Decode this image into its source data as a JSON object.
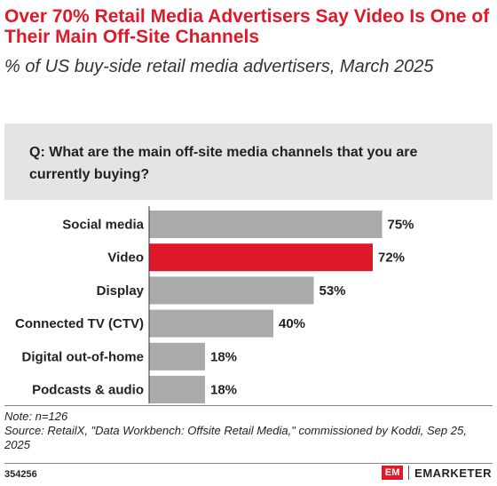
{
  "header": {
    "title": "Over 70% Retail Media Advertisers Say Video Is One of Their Main Off-Site Channels",
    "subtitle": "% of US buy-side retail media advertisers, March 2025"
  },
  "question": "Q:  What are the main off-site media channels that you are currently buying?",
  "colors": {
    "title": "#e0192a",
    "bar_default": "#aaaaaa",
    "bar_highlight": "#e0192a",
    "question_bg": "#e4e4e4"
  },
  "chart_data": {
    "type": "bar",
    "orientation": "horizontal",
    "categories": [
      "Social media",
      "Video",
      "Display",
      "Connected TV (CTV)",
      "Digital out-of-home",
      "Podcasts & audio"
    ],
    "values": [
      75,
      72,
      53,
      40,
      18,
      18
    ],
    "labels": [
      "75%",
      "72%",
      "53%",
      "40%",
      "18%",
      "18%"
    ],
    "highlight": "Video",
    "xlim": [
      0,
      100
    ]
  },
  "footer": {
    "note": "Note: n=126",
    "source": "Source: RetailX, \"Data Workbench: Offsite Retail Media,\" commissioned by Koddi, Sep 25, 2025",
    "code": "354256",
    "brand_logo": "EM",
    "brand_name": "EMARKETER"
  }
}
